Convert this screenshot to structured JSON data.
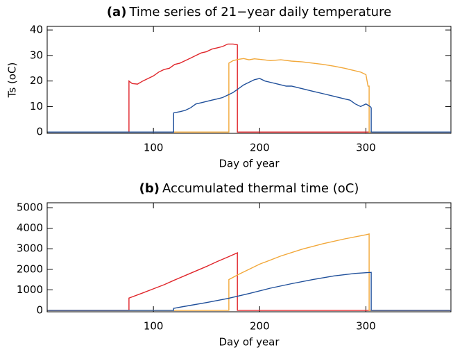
{
  "chart_data": [
    {
      "type": "line",
      "label": "(a)",
      "title": "Time series of 21−year daily temperature",
      "xlabel": "Day of year",
      "ylabel": "Ts (oC)",
      "xlim": [
        0,
        380
      ],
      "xticks": [
        100,
        200,
        300
      ],
      "ylim": [
        -0.5,
        41.4
      ],
      "yticks": [
        0,
        10,
        20,
        30,
        40
      ],
      "series": [
        {
          "color": "#e0262b",
          "x": [
            1,
            77,
            77,
            80,
            85,
            90,
            95,
            100,
            105,
            110,
            115,
            120,
            125,
            130,
            135,
            140,
            145,
            150,
            155,
            160,
            165,
            170,
            175,
            179,
            179,
            380
          ],
          "values": [
            0,
            0,
            20,
            19,
            18.8,
            20,
            21,
            22,
            23.5,
            24.5,
            25,
            26.5,
            27,
            28,
            29,
            30,
            31,
            31.5,
            32.5,
            33,
            33.5,
            34.5,
            34.5,
            34.2,
            0,
            0
          ]
        },
        {
          "color": "#f2a83a",
          "x": [
            1,
            171,
            171,
            175,
            180,
            185,
            190,
            195,
            200,
            210,
            220,
            230,
            240,
            250,
            260,
            270,
            280,
            290,
            295,
            300,
            302,
            303,
            303,
            380
          ],
          "values": [
            0,
            0,
            27,
            28,
            28.5,
            28.8,
            28.3,
            28.7,
            28.5,
            28,
            28.3,
            27.8,
            27.5,
            27,
            26.5,
            25.8,
            25,
            24,
            23.5,
            22.5,
            18,
            18,
            0,
            0
          ]
        },
        {
          "color": "#1f4f9a",
          "x": [
            1,
            119,
            119,
            125,
            130,
            135,
            140,
            145,
            150,
            155,
            160,
            165,
            170,
            175,
            180,
            185,
            190,
            195,
            200,
            205,
            210,
            215,
            220,
            225,
            230,
            240,
            250,
            260,
            270,
            280,
            285,
            290,
            295,
            300,
            304,
            305,
            305,
            380
          ],
          "values": [
            0,
            0,
            7.5,
            8,
            8.5,
            9.5,
            11,
            11.5,
            12,
            12.5,
            13,
            13.5,
            14.5,
            15.5,
            17,
            18.5,
            19.5,
            20.5,
            21,
            20,
            19.5,
            19,
            18.5,
            18,
            18,
            17,
            16,
            15,
            14,
            13,
            12.5,
            11,
            10,
            11,
            10,
            9.5,
            0,
            0
          ]
        }
      ]
    },
    {
      "type": "line",
      "label": "(b)",
      "title": "Accumulated thermal time (oC)",
      "xlabel": "Day of year",
      "xlim": [
        0,
        380
      ],
      "xticks": [
        100,
        200,
        300
      ],
      "ylim": [
        -70,
        5240
      ],
      "yticks": [
        0,
        1000,
        2000,
        3000,
        4000,
        5000
      ],
      "series": [
        {
          "color": "#e0262b",
          "x": [
            1,
            77,
            77,
            90,
            100,
            110,
            120,
            130,
            140,
            150,
            160,
            170,
            179,
            179,
            380
          ],
          "values": [
            0,
            0,
            600,
            850,
            1050,
            1250,
            1480,
            1700,
            1920,
            2140,
            2380,
            2600,
            2800,
            0,
            0
          ]
        },
        {
          "color": "#f2a83a",
          "x": [
            1,
            171,
            171,
            180,
            200,
            220,
            240,
            260,
            280,
            300,
            303,
            303,
            380
          ],
          "values": [
            0,
            0,
            1500,
            1750,
            2250,
            2650,
            2980,
            3250,
            3480,
            3680,
            3720,
            0,
            0
          ]
        },
        {
          "color": "#1f4f9a",
          "x": [
            1,
            119,
            119,
            130,
            150,
            170,
            190,
            210,
            230,
            250,
            270,
            290,
            305,
            305,
            380
          ],
          "values": [
            0,
            0,
            100,
            200,
            380,
            580,
            820,
            1080,
            1300,
            1500,
            1680,
            1800,
            1850,
            0,
            0
          ]
        }
      ]
    }
  ]
}
